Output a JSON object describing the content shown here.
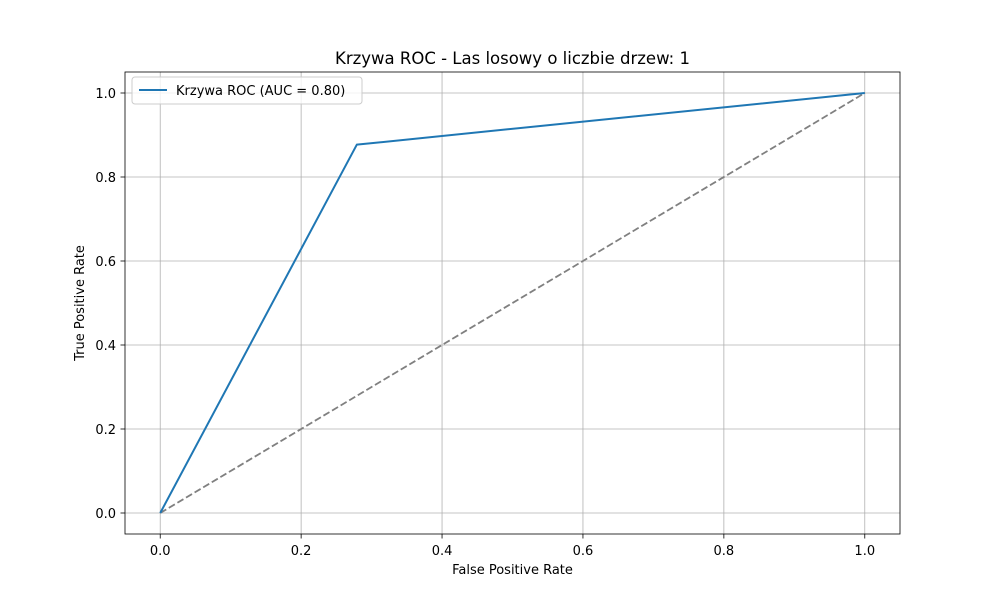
{
  "chart_data": {
    "type": "line",
    "title": "Krzywa ROC - Las losowy o liczbie drzew: 1",
    "xlabel": "False Positive Rate",
    "ylabel": "True Positive Rate",
    "xlim": [
      -0.05,
      1.05
    ],
    "ylim": [
      -0.05,
      1.05
    ],
    "xticks": [
      0.0,
      0.2,
      0.4,
      0.6,
      0.8,
      1.0
    ],
    "yticks": [
      0.0,
      0.2,
      0.4,
      0.6,
      0.8,
      1.0
    ],
    "xtick_labels": [
      "0.0",
      "0.2",
      "0.4",
      "0.6",
      "0.8",
      "1.0"
    ],
    "ytick_labels": [
      "0.0",
      "0.2",
      "0.4",
      "0.6",
      "0.8",
      "1.0"
    ],
    "grid": true,
    "legend_position": "top-left",
    "series": [
      {
        "name": "Krzywa ROC (AUC = 0.80)",
        "x": [
          0.0,
          0.279,
          1.0
        ],
        "y": [
          0.0,
          0.877,
          1.0
        ],
        "color": "#1f77b4",
        "style": "solid"
      },
      {
        "x": [
          0.0,
          1.0
        ],
        "y": [
          0.0,
          1.0
        ],
        "color": "#808080",
        "style": "dashed"
      }
    ]
  }
}
